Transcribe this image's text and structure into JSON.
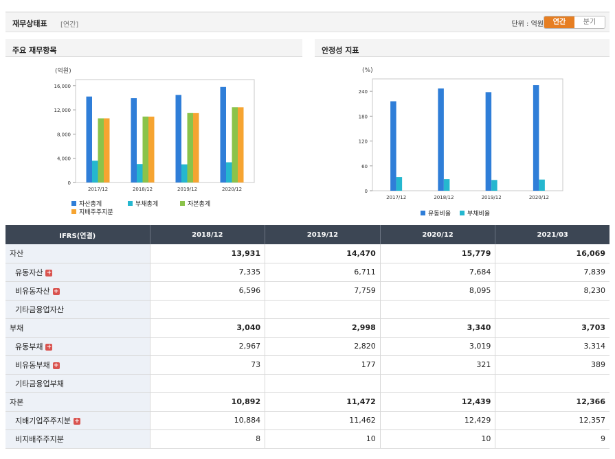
{
  "header": {
    "title": "재무상태표",
    "period": "[연간]",
    "unit": "단위 : 억원",
    "toggle": [
      {
        "label": "연간",
        "active": true
      },
      {
        "label": "분기",
        "active": false
      }
    ]
  },
  "panels": {
    "left_title": "주요 재무항목",
    "right_title": "안정성 지표"
  },
  "chart_data": [
    {
      "type": "bar",
      "ylabel": "(억원)",
      "ylim": [
        0,
        17000
      ],
      "yticks": [
        "0",
        "4,000",
        "8,000",
        "12,000",
        "16,000"
      ],
      "ytick_values": [
        0,
        4000,
        8000,
        12000,
        16000
      ],
      "categories": [
        "2017/12",
        "2018/12",
        "2019/12",
        "2020/12"
      ],
      "series": [
        {
          "name": "자산총계",
          "color": "#2f7ed8",
          "values": [
            14200,
            13931,
            14470,
            15779
          ]
        },
        {
          "name": "부채총계",
          "color": "#25b7cf",
          "values": [
            3600,
            3040,
            2998,
            3340
          ]
        },
        {
          "name": "자본총계",
          "color": "#8bc34a",
          "values": [
            10600,
            10892,
            11472,
            12439
          ]
        },
        {
          "name": "지배주주지분",
          "color": "#f6a431",
          "values": [
            10600,
            10884,
            11462,
            12429
          ]
        }
      ],
      "legend": "bottom"
    },
    {
      "type": "bar",
      "ylabel": "(%)",
      "ylim": [
        0,
        270
      ],
      "yticks": [
        "0",
        "60",
        "120",
        "180",
        "240"
      ],
      "ytick_values": [
        0,
        60,
        120,
        180,
        240
      ],
      "categories": [
        "2017/12",
        "2018/12",
        "2019/12",
        "2020/12"
      ],
      "series": [
        {
          "name": "유동비율",
          "color": "#2f7ed8",
          "values": [
            216,
            247,
            238,
            255
          ]
        },
        {
          "name": "부채비율",
          "color": "#25b7cf",
          "values": [
            33,
            28,
            26,
            27
          ]
        }
      ],
      "legend": "bottom"
    }
  ],
  "table": {
    "headers": [
      "IFRS(연결)",
      "2018/12",
      "2019/12",
      "2020/12",
      "2021/03"
    ],
    "rows": [
      {
        "label": "자산",
        "main": true,
        "plus": false,
        "values": [
          "13,931",
          "14,470",
          "15,779",
          "16,069"
        ]
      },
      {
        "label": "유동자산",
        "main": false,
        "plus": true,
        "values": [
          "7,335",
          "6,711",
          "7,684",
          "7,839"
        ]
      },
      {
        "label": "비유동자산",
        "main": false,
        "plus": true,
        "values": [
          "6,596",
          "7,759",
          "8,095",
          "8,230"
        ]
      },
      {
        "label": "기타금융업자산",
        "main": false,
        "plus": false,
        "values": [
          "",
          "",
          "",
          ""
        ]
      },
      {
        "label": "부채",
        "main": true,
        "plus": false,
        "values": [
          "3,040",
          "2,998",
          "3,340",
          "3,703"
        ]
      },
      {
        "label": "유동부채",
        "main": false,
        "plus": true,
        "values": [
          "2,967",
          "2,820",
          "3,019",
          "3,314"
        ]
      },
      {
        "label": "비유동부채",
        "main": false,
        "plus": true,
        "values": [
          "73",
          "177",
          "321",
          "389"
        ]
      },
      {
        "label": "기타금융업부채",
        "main": false,
        "plus": false,
        "values": [
          "",
          "",
          "",
          ""
        ]
      },
      {
        "label": "자본",
        "main": true,
        "plus": false,
        "values": [
          "10,892",
          "11,472",
          "12,439",
          "12,366"
        ]
      },
      {
        "label": "지배기업주주지분",
        "main": false,
        "plus": true,
        "values": [
          "10,884",
          "11,462",
          "12,429",
          "12,357"
        ]
      },
      {
        "label": "비지배주주지분",
        "main": false,
        "plus": false,
        "values": [
          "8",
          "10",
          "10",
          "9"
        ]
      }
    ]
  }
}
